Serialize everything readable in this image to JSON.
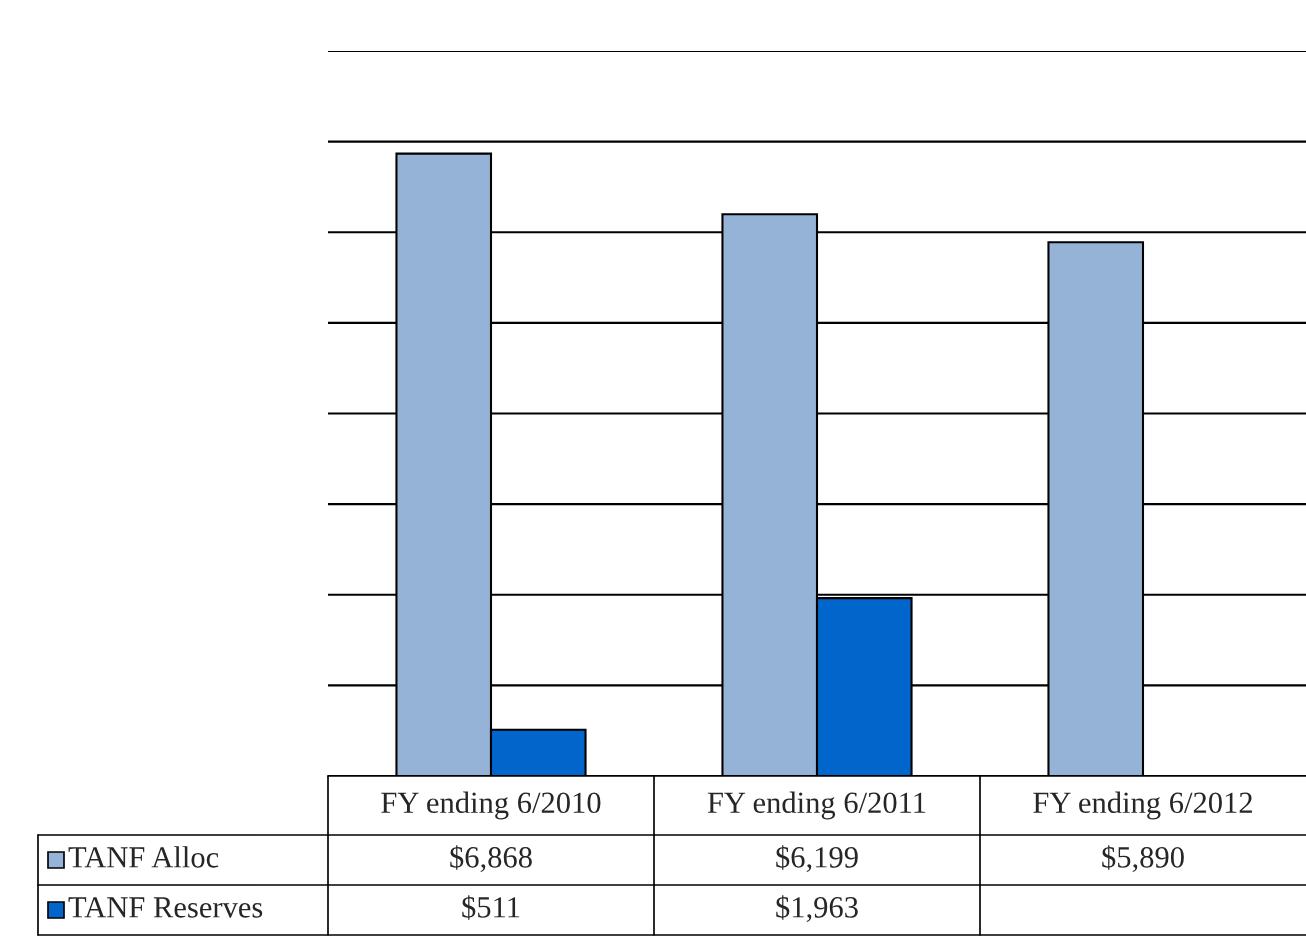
{
  "chart_data": {
    "type": "bar",
    "categories": [
      "FY ending 6/2010",
      "FY ending 6/2011",
      "FY ending 6/2012"
    ],
    "series": [
      {
        "name": "TANF Alloc",
        "color": "#95b3d7",
        "values": [
          6868,
          6199,
          5890
        ],
        "value_labels": [
          "$6,868",
          "$6,199",
          "$5,890"
        ]
      },
      {
        "name": "TANF Reserves",
        "color": "#0066cc",
        "values": [
          511,
          1963,
          null
        ],
        "value_labels": [
          "$511",
          "$1,963",
          null
        ]
      }
    ],
    "ylim": [
      0,
      8000
    ],
    "yticks": [
      {
        "value": 0,
        "label": null
      },
      {
        "value": 1000,
        "label": null
      },
      {
        "value": 2000,
        "label": null
      },
      {
        "value": 3000,
        "label": null
      },
      {
        "value": 4000,
        "label": null
      },
      {
        "value": 5000,
        "label": null
      },
      {
        "value": 6000,
        "label": null
      },
      {
        "value": 7000,
        "label": null
      },
      {
        "value": 8000,
        "label": null
      }
    ],
    "grid": "y",
    "legend": "bottom",
    "tick_labels": "x"
  }
}
